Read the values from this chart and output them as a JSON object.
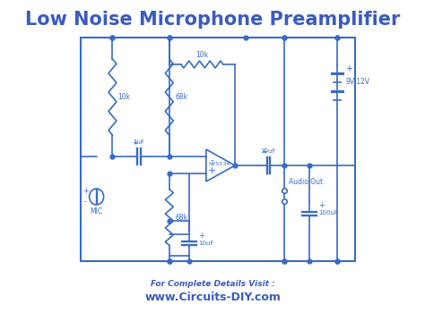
{
  "title": "Low Noise Microphone Preamplifier",
  "title_color": "#3a5bbf",
  "title_fontsize": 15,
  "footer_line1": "For Complete Details Visit :",
  "footer_line2": "www.Circuits-DIY.com",
  "footer_color": "#3a5bbf",
  "circuit_color": "#3a6bc4",
  "bg_color": "#ffffff",
  "figsize": [
    4.74,
    3.5
  ],
  "dpi": 100
}
